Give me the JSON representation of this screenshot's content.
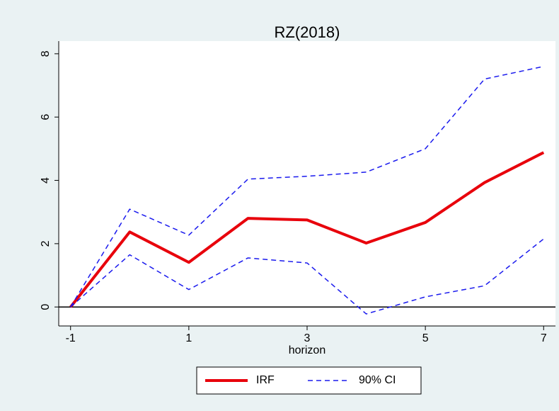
{
  "chart_data": {
    "type": "line",
    "title": "RZ(2018)",
    "x_label": "horizon",
    "x": [
      -1,
      0,
      1,
      2,
      3,
      4,
      5,
      6,
      7
    ],
    "series": [
      {
        "name": "IRF",
        "color": "#e8000b",
        "dashed": false,
        "values": [
          0,
          2.37,
          1.41,
          2.8,
          2.75,
          2.02,
          2.67,
          3.93,
          4.88
        ]
      },
      {
        "name": "90% CI",
        "color": "#1a1aee",
        "dashed": true,
        "upper": [
          0,
          3.09,
          2.27,
          4.04,
          4.13,
          4.26,
          5.0,
          7.2,
          7.6
        ],
        "lower": [
          0,
          1.65,
          0.55,
          1.55,
          1.39,
          -0.22,
          0.32,
          0.67,
          2.15
        ]
      }
    ],
    "xlim": [
      -1.2,
      7.2
    ],
    "ylim": [
      -0.6,
      8.4
    ],
    "xticks": [
      -1,
      1,
      3,
      5,
      7
    ],
    "yticks": [
      0,
      2,
      4,
      6,
      8
    ],
    "hline": 0,
    "grid": false,
    "legend_position": "bottom"
  }
}
